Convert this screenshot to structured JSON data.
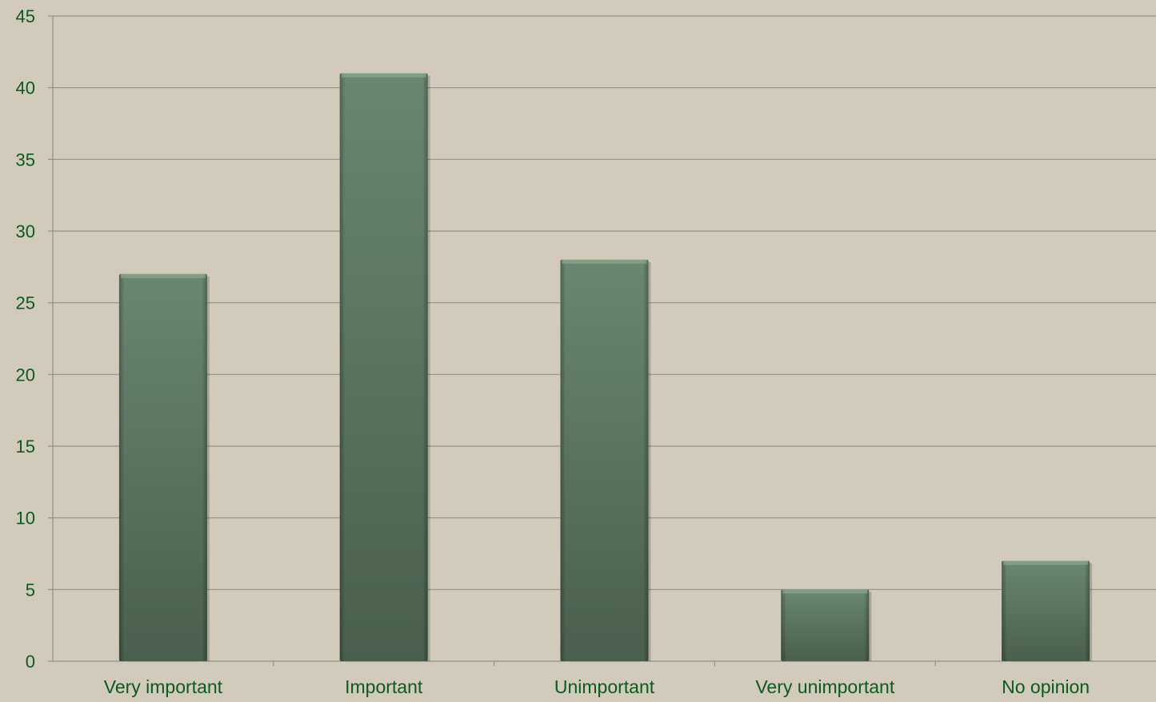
{
  "chart_data": {
    "type": "bar",
    "title": "",
    "xlabel": "",
    "ylabel": "",
    "categories": [
      "Very important",
      "Important",
      "Unimportant",
      "Very unimportant",
      "No opinion"
    ],
    "values": [
      27,
      41,
      28,
      5,
      7
    ],
    "ylim": [
      0,
      45
    ],
    "yticks": [
      0,
      5,
      10,
      15,
      20,
      25,
      30,
      35,
      40,
      45
    ],
    "grid": true,
    "legend": "none"
  },
  "colors": {
    "background": "#d2cabb",
    "gridline": "#8b9485",
    "axis": "#8b9485",
    "tick_label": "#0b5a1e",
    "bar_top": "#6a8770",
    "bar_bottom": "#4a5f4d"
  }
}
